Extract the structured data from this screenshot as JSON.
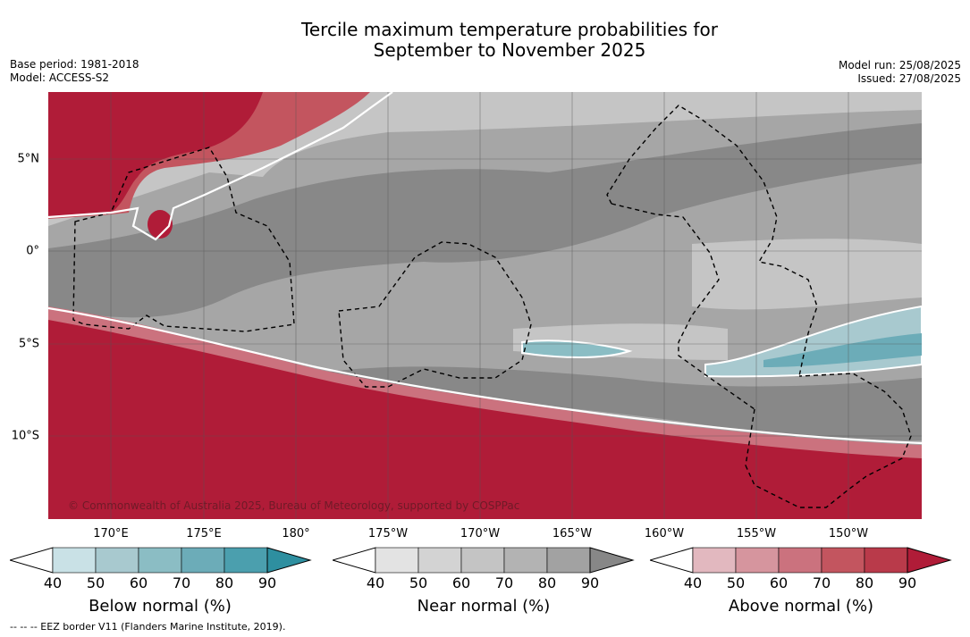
{
  "title_line1": "Tercile maximum temperature probabilities for",
  "title_line2": "September to November 2025",
  "base_period": "Base period: 1981-2018",
  "model": "Model: ACCESS-S2",
  "model_run": "Model run: 25/08/2025",
  "issued": "Issued: 27/08/2025",
  "copyright": "© Commonwealth of Australia 2025, Bureau of Meteorology, supported by COSPPac",
  "footnote": "-- -- -- EEZ border V11 (Flanders Marine Institute, 2019).",
  "lat_labels": [
    "5°N",
    "0°",
    "5°S",
    "10°S"
  ],
  "lon_labels": [
    "170°E",
    "175°E",
    "180°",
    "175°W",
    "170°W",
    "165°W",
    "160°W",
    "155°W",
    "150°W"
  ],
  "colorbars": [
    {
      "title": "Below normal (%)",
      "ticks": [
        "40",
        "50",
        "60",
        "70",
        "80",
        "90"
      ],
      "colors": [
        "#ffffff",
        "#c9e1e6",
        "#a8c9cf",
        "#8bbdc4",
        "#6cacb8",
        "#4b9fae",
        "#2e8fa0"
      ]
    },
    {
      "title": "Near normal (%)",
      "ticks": [
        "40",
        "50",
        "60",
        "70",
        "80",
        "90"
      ],
      "colors": [
        "#ffffff",
        "#e3e3e3",
        "#d3d3d3",
        "#c4c4c4",
        "#b3b3b3",
        "#a2a2a2",
        "#878787"
      ]
    },
    {
      "title": "Above normal (%)",
      "ticks": [
        "40",
        "50",
        "60",
        "70",
        "80",
        "90"
      ],
      "colors": [
        "#ffffff",
        "#e2b8bf",
        "#d6959e",
        "#cb727e",
        "#c3555f",
        "#b93a4a",
        "#b01c38"
      ]
    }
  ],
  "colors": {
    "above_max": "#b01c38",
    "near_max": "#878787",
    "below_mid": "#8bbdc4"
  }
}
